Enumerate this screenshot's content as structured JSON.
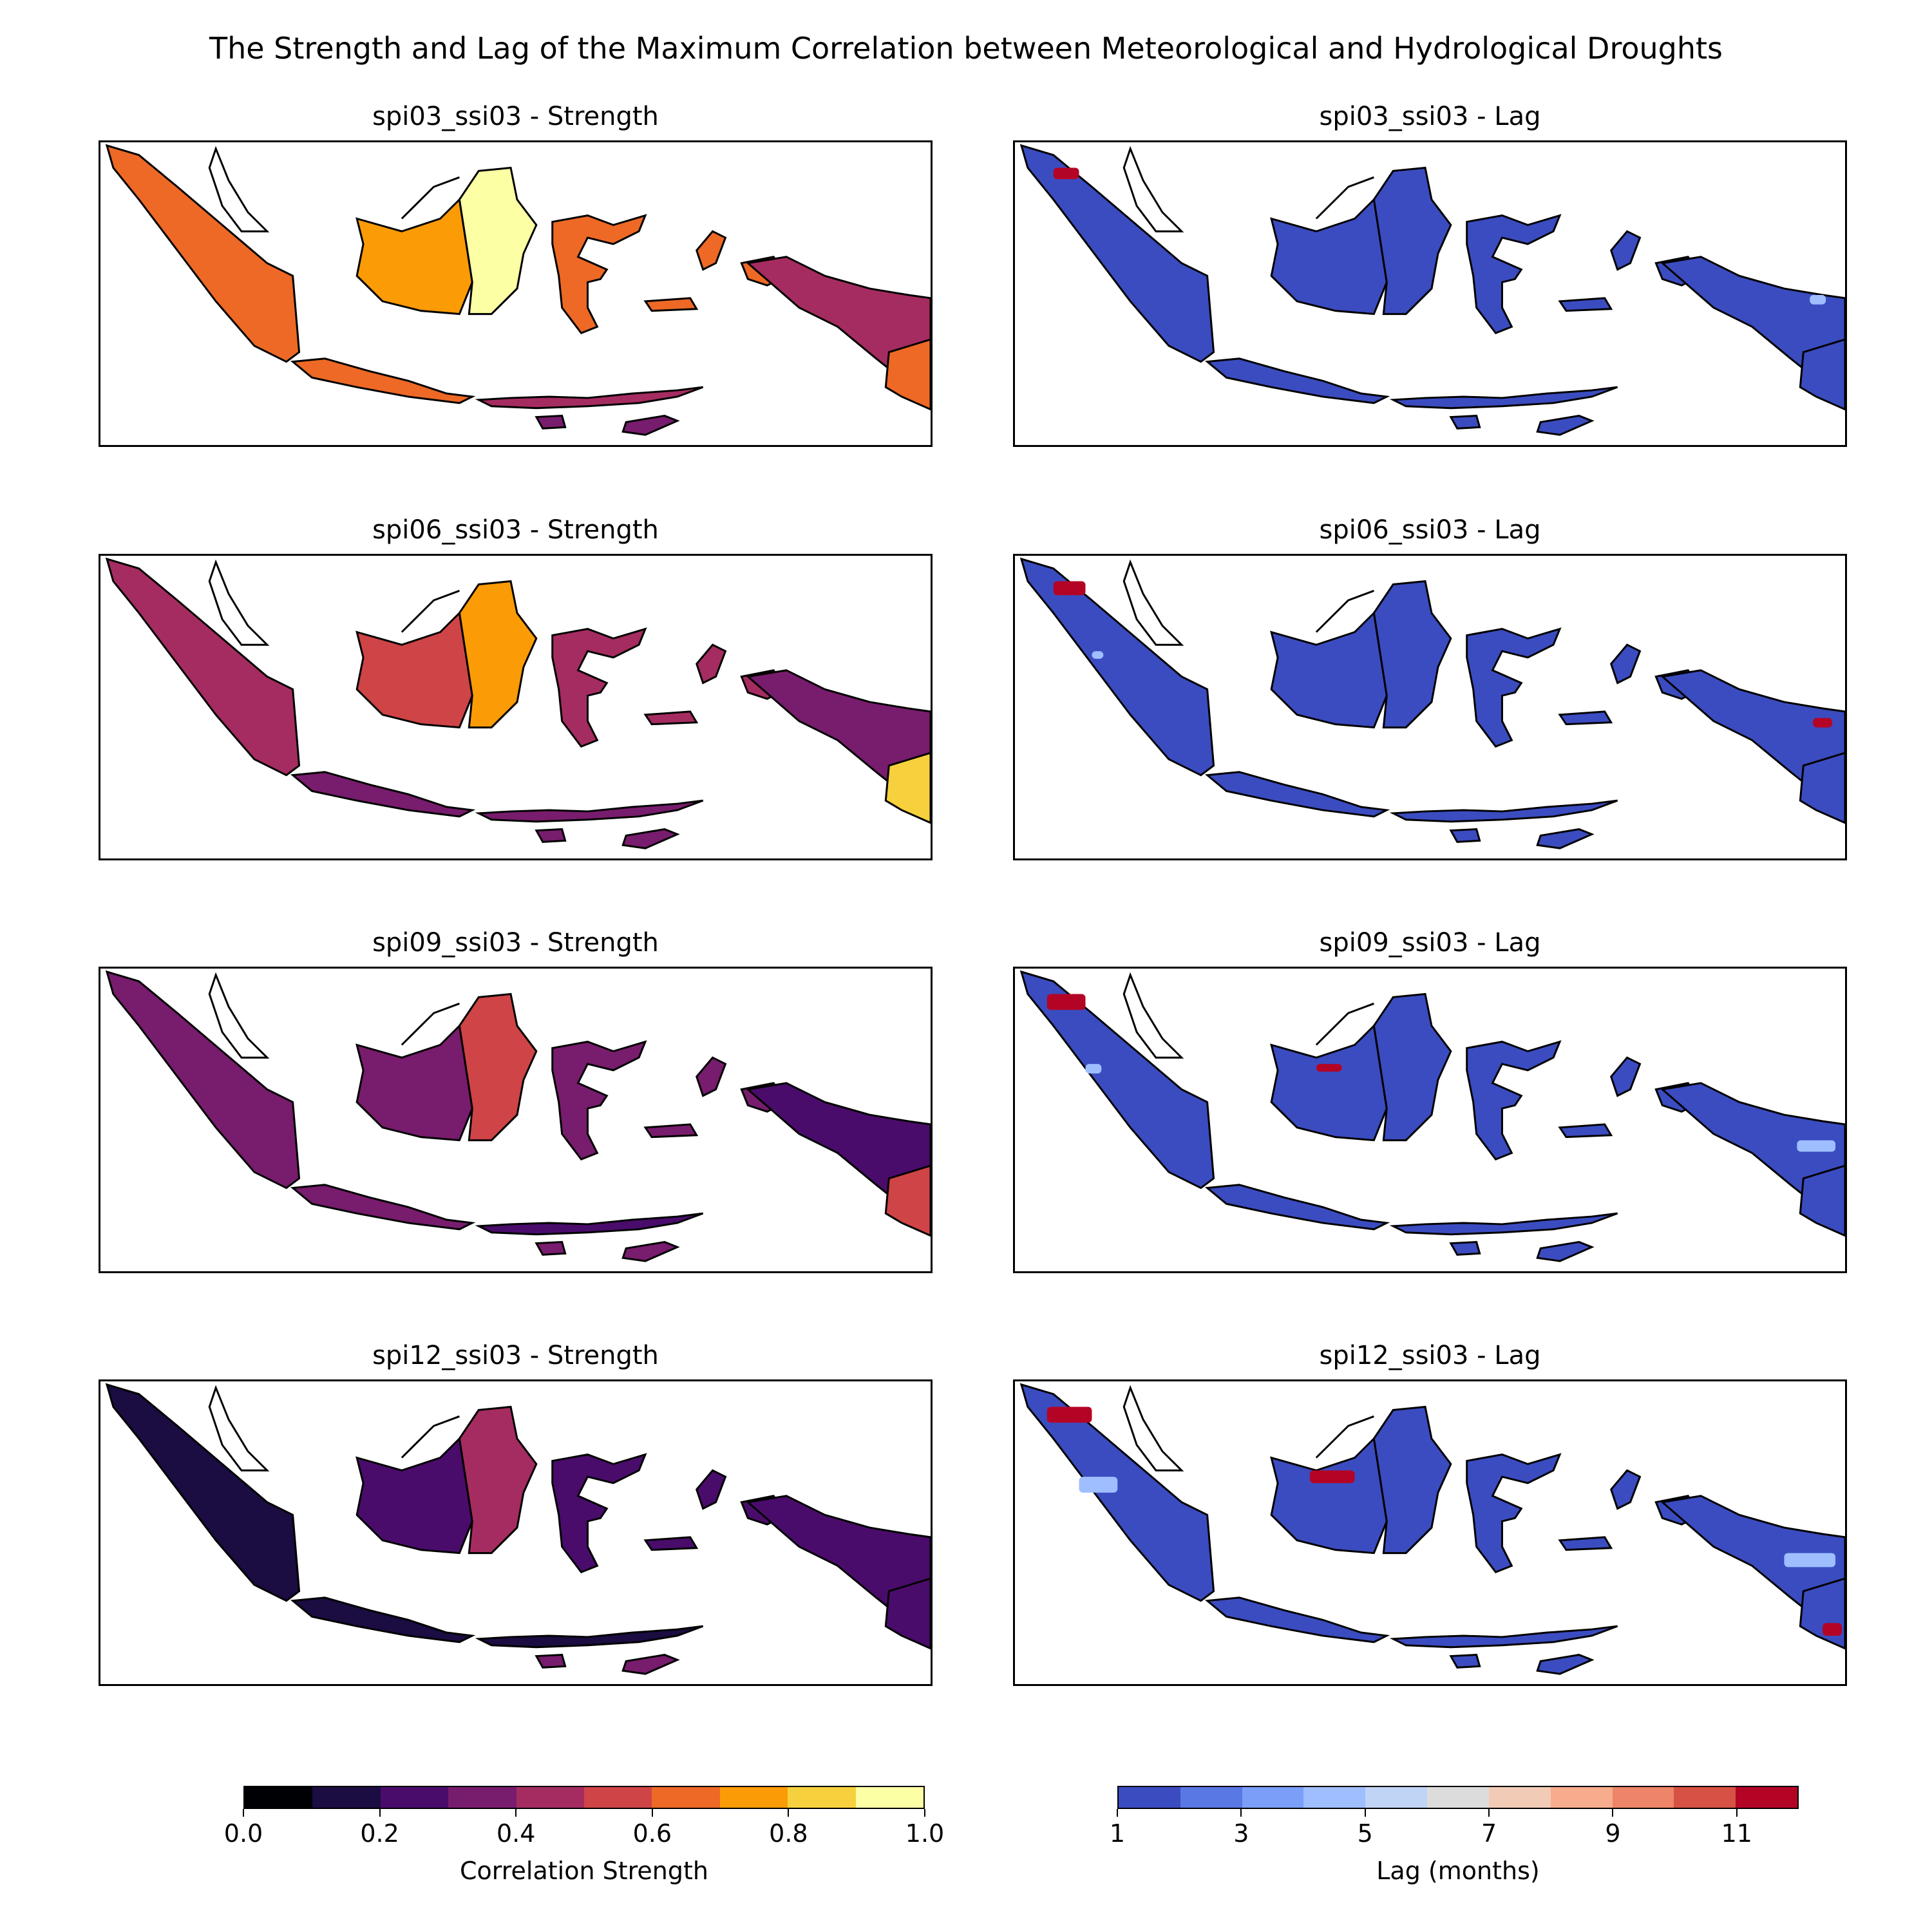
{
  "figure": {
    "title": "The Strength and Lag of the Maximum Correlation between Meteorological and Hydrological Droughts"
  },
  "chart_data": {
    "type": "heatmap",
    "panels": [
      {
        "title": "spi03_ssi03 - Strength",
        "variable": "strength",
        "row": 0
      },
      {
        "title": "spi03_ssi03 - Lag",
        "variable": "lag",
        "row": 0
      },
      {
        "title": "spi06_ssi03 - Strength",
        "variable": "strength",
        "row": 1
      },
      {
        "title": "spi06_ssi03 - Lag",
        "variable": "lag",
        "row": 1
      },
      {
        "title": "spi09_ssi03 - Strength",
        "variable": "strength",
        "row": 2
      },
      {
        "title": "spi09_ssi03 - Lag",
        "variable": "lag",
        "row": 2
      },
      {
        "title": "spi12_ssi03 - Strength",
        "variable": "strength",
        "row": 3
      },
      {
        "title": "spi12_ssi03 - Lag",
        "variable": "lag",
        "row": 3
      }
    ],
    "region_levels": {
      "strength": [
        {
          "region": "sumatra",
          "values": [
            0.65,
            0.45,
            0.3,
            0.15
          ]
        },
        {
          "region": "kalimantan_west",
          "values": [
            0.7,
            0.5,
            0.3,
            0.25
          ]
        },
        {
          "region": "kalimantan_east",
          "values": [
            0.95,
            0.75,
            0.5,
            0.4
          ]
        },
        {
          "region": "sulawesi",
          "values": [
            0.6,
            0.45,
            0.3,
            0.25
          ]
        },
        {
          "region": "java",
          "values": [
            0.65,
            0.35,
            0.3,
            0.15
          ]
        },
        {
          "region": "nusa_tenggara",
          "values": [
            0.45,
            0.35,
            0.2,
            0.15
          ]
        },
        {
          "region": "maluku",
          "values": [
            0.65,
            0.4,
            0.3,
            0.2
          ]
        },
        {
          "region": "papua",
          "values": [
            0.45,
            0.3,
            0.25,
            0.2
          ]
        },
        {
          "region": "papua_south",
          "values": [
            0.6,
            0.8,
            0.5,
            0.25
          ]
        }
      ],
      "lag": {
        "dominant": 1
      }
    },
    "colorbars": [
      {
        "label": "Correlation Strength",
        "range": [
          0.0,
          1.0
        ],
        "ticks": [
          "0.0",
          "0.2",
          "0.4",
          "0.6",
          "0.8",
          "1.0"
        ],
        "colors": [
          "#000004",
          "#1b0c41",
          "#4a0c6b",
          "#781c6d",
          "#a52c60",
          "#cf4446",
          "#ed6925",
          "#fb9b06",
          "#f7d13d",
          "#fcffa4"
        ]
      },
      {
        "label": "Lag (months)",
        "range": [
          1,
          12
        ],
        "ticks": [
          "1",
          "3",
          "5",
          "7",
          "9",
          "11"
        ],
        "colors": [
          "#3b4cc0",
          "#5a78e4",
          "#7b9ff9",
          "#9ebeff",
          "#c0d4f5",
          "#dddcdc",
          "#f2cbb7",
          "#f7ac8e",
          "#ee8468",
          "#d65244",
          "#b40426"
        ]
      }
    ]
  }
}
